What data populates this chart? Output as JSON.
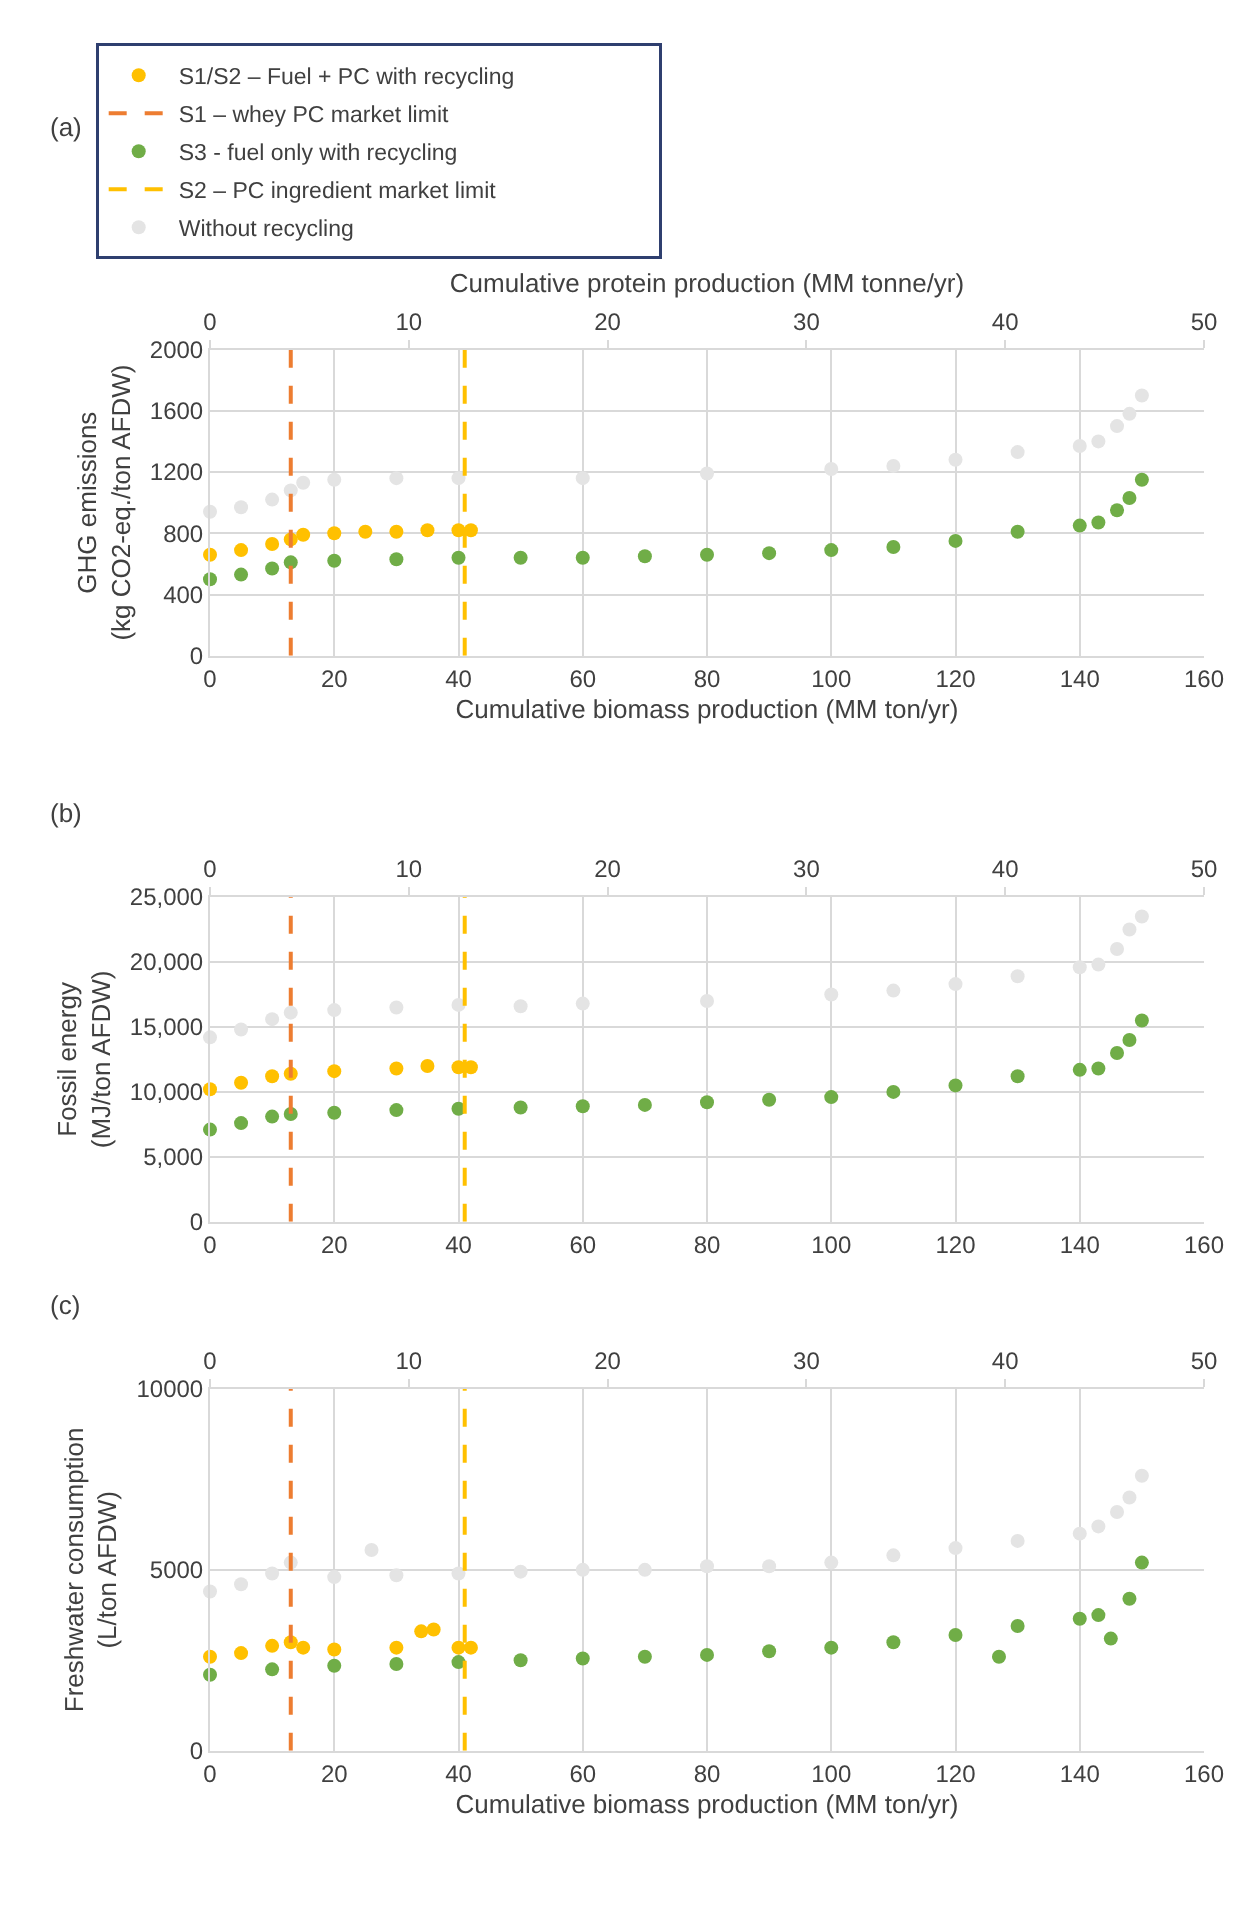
{
  "chart_data": [
    {
      "type": "scatter",
      "annotations": [
        "(a)"
      ],
      "xlabel": "Cumulative biomass production (MM ton/yr)",
      "x2label": "Cumulative protein production (MM tonne/yr)",
      "ylabel": "GHG emissions\n(kg CO2-eq./ton AFDW)",
      "xlim": [
        0,
        160
      ],
      "xticks": [
        0,
        20,
        40,
        60,
        80,
        100,
        120,
        140,
        160
      ],
      "x2lim": [
        0,
        50
      ],
      "x2ticks": [
        0,
        10,
        20,
        30,
        40,
        50
      ],
      "ylim": [
        0,
        2000
      ],
      "yticks": [
        0,
        400,
        800,
        1200,
        1600,
        2000
      ],
      "grid": true,
      "marker": "circle",
      "legend": "top",
      "series": [
        {
          "name": "S1/S2 – Fuel + PC with recycling",
          "color": "#ffc000",
          "x": [
            0,
            5,
            10,
            13,
            15,
            20,
            25,
            30,
            35,
            40,
            42
          ],
          "values": [
            660,
            690,
            730,
            760,
            790,
            800,
            810,
            810,
            820,
            820,
            820
          ]
        },
        {
          "name": "S3 - fuel only with recycling",
          "color": "#70ad47",
          "x": [
            0,
            5,
            10,
            13,
            20,
            30,
            40,
            50,
            60,
            70,
            80,
            90,
            100,
            110,
            120,
            130,
            140,
            143,
            146,
            148,
            150
          ],
          "values": [
            500,
            530,
            570,
            610,
            620,
            630,
            640,
            640,
            640,
            650,
            660,
            670,
            690,
            710,
            750,
            810,
            850,
            870,
            950,
            1030,
            1150
          ]
        },
        {
          "name": "Without recycling",
          "color": "#e4e4e4",
          "x": [
            0,
            5,
            10,
            13,
            15,
            20,
            30,
            40,
            60,
            80,
            100,
            110,
            120,
            130,
            140,
            143,
            146,
            148,
            150
          ],
          "values": [
            940,
            970,
            1020,
            1080,
            1130,
            1150,
            1160,
            1160,
            1160,
            1190,
            1220,
            1240,
            1280,
            1330,
            1370,
            1400,
            1500,
            1580,
            1700
          ]
        }
      ],
      "ref_lines": [
        {
          "axis": "x",
          "value": 13,
          "label": "S1 – whey PC market limit",
          "color": "#ed7d31",
          "line_style": "dashed"
        },
        {
          "axis": "x",
          "value": 41,
          "label": "S2 – PC ingredient market limit",
          "color": "#ffc000",
          "line_style": "dashed"
        }
      ]
    },
    {
      "type": "scatter",
      "annotations": [
        "(b)"
      ],
      "ylabel": "Fossil energy\n(MJ/ton AFDW)",
      "xlim": [
        0,
        160
      ],
      "xticks": [
        0,
        20,
        40,
        60,
        80,
        100,
        120,
        140,
        160
      ],
      "x2lim": [
        0,
        50
      ],
      "x2ticks": [
        0,
        10,
        20,
        30,
        40,
        50
      ],
      "ylim": [
        0,
        25000
      ],
      "yticks": [
        0,
        {
          "value": 5000,
          "label": "5,000"
        },
        {
          "value": 10000,
          "label": "10,000"
        },
        {
          "value": 15000,
          "label": "15,000"
        },
        {
          "value": 20000,
          "label": "20,000"
        },
        {
          "value": 25000,
          "label": "25,000"
        }
      ],
      "grid": true,
      "marker": "circle",
      "series": [
        {
          "color": "#ffc000",
          "x": [
            0,
            5,
            10,
            13,
            20,
            30,
            35,
            40,
            42
          ],
          "values": [
            10200,
            10700,
            11200,
            11400,
            11600,
            11800,
            12000,
            11900,
            11900
          ]
        },
        {
          "color": "#70ad47",
          "x": [
            0,
            5,
            10,
            13,
            20,
            30,
            40,
            50,
            60,
            70,
            80,
            90,
            100,
            110,
            120,
            130,
            140,
            143,
            146,
            148,
            150
          ],
          "values": [
            7100,
            7600,
            8100,
            8300,
            8400,
            8600,
            8700,
            8800,
            8900,
            9000,
            9200,
            9400,
            9600,
            10000,
            10500,
            11200,
            11700,
            11800,
            13000,
            14000,
            15500
          ]
        },
        {
          "color": "#e4e4e4",
          "x": [
            0,
            5,
            10,
            13,
            20,
            30,
            40,
            50,
            60,
            80,
            100,
            110,
            120,
            130,
            140,
            143,
            146,
            148,
            150
          ],
          "values": [
            14200,
            14800,
            15600,
            16100,
            16300,
            16500,
            16700,
            16600,
            16800,
            17000,
            17500,
            17800,
            18300,
            18900,
            19600,
            19800,
            21000,
            22500,
            23500
          ]
        }
      ],
      "ref_lines": [
        {
          "axis": "x",
          "value": 13,
          "color": "#ed7d31",
          "line_style": "dashed"
        },
        {
          "axis": "x",
          "value": 41,
          "color": "#ffc000",
          "line_style": "dashed"
        }
      ]
    },
    {
      "type": "scatter",
      "annotations": [
        "(c)"
      ],
      "xlabel": "Cumulative biomass production (MM ton/yr)",
      "ylabel": "Freshwater consumption\n(L/ton AFDW)",
      "xlim": [
        0,
        160
      ],
      "xticks": [
        0,
        20,
        40,
        60,
        80,
        100,
        120,
        140,
        160
      ],
      "x2lim": [
        0,
        50
      ],
      "x2ticks": [
        0,
        10,
        20,
        30,
        40,
        50
      ],
      "ylim": [
        0,
        10000
      ],
      "yticks": [
        0,
        5000,
        10000
      ],
      "grid": true,
      "marker": "circle",
      "series": [
        {
          "color": "#ffc000",
          "x": [
            0,
            5,
            10,
            13,
            15,
            20,
            30,
            34,
            36,
            40,
            42
          ],
          "values": [
            2600,
            2700,
            2900,
            3000,
            2850,
            2800,
            2850,
            3300,
            3350,
            2850,
            2850
          ]
        },
        {
          "color": "#70ad47",
          "x": [
            0,
            10,
            20,
            30,
            40,
            50,
            60,
            70,
            80,
            90,
            100,
            110,
            120,
            127,
            130,
            140,
            143,
            145,
            148,
            150
          ],
          "values": [
            2100,
            2250,
            2350,
            2400,
            2450,
            2500,
            2550,
            2600,
            2650,
            2750,
            2850,
            3000,
            3200,
            2600,
            3450,
            3650,
            3750,
            3100,
            4200,
            5200
          ]
        },
        {
          "color": "#e4e4e4",
          "x": [
            0,
            5,
            10,
            13,
            20,
            26,
            30,
            40,
            50,
            60,
            70,
            80,
            90,
            100,
            110,
            120,
            130,
            140,
            143,
            146,
            148,
            150
          ],
          "values": [
            4400,
            4600,
            4900,
            5200,
            4800,
            5550,
            4850,
            4900,
            4950,
            5000,
            5000,
            5100,
            5100,
            5200,
            5400,
            5600,
            5800,
            6000,
            6200,
            6600,
            7000,
            7600
          ]
        }
      ],
      "ref_lines": [
        {
          "axis": "x",
          "value": 13,
          "color": "#ed7d31",
          "line_style": "dashed"
        },
        {
          "axis": "x",
          "value": 41,
          "color": "#ffc000",
          "line_style": "dashed"
        }
      ]
    }
  ]
}
